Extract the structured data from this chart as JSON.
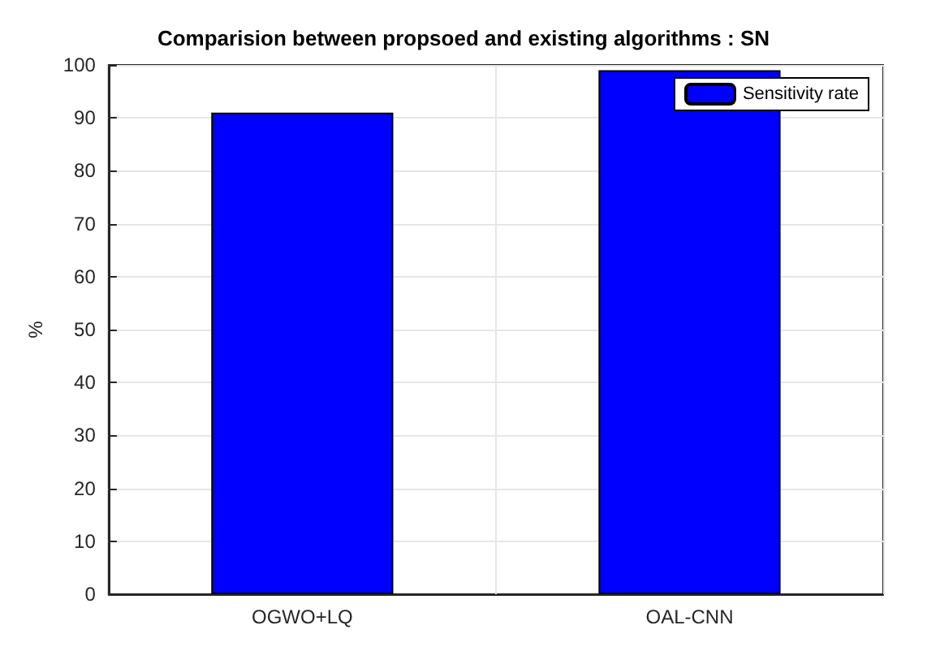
{
  "chart_data": {
    "type": "bar",
    "title": "Comparision between propsoed and existing algorithms : SN",
    "ylabel": "%",
    "categories": [
      "OGWO+LQ",
      "OAL-CNN"
    ],
    "series": [
      {
        "name": "Sensitivity rate",
        "color": "#0000ff",
        "values": [
          91,
          99
        ]
      }
    ],
    "ylim": [
      0,
      100
    ],
    "yticks": [
      0,
      10,
      20,
      30,
      40,
      50,
      60,
      70,
      80,
      90,
      100
    ],
    "grid": true,
    "legend": "top right"
  }
}
